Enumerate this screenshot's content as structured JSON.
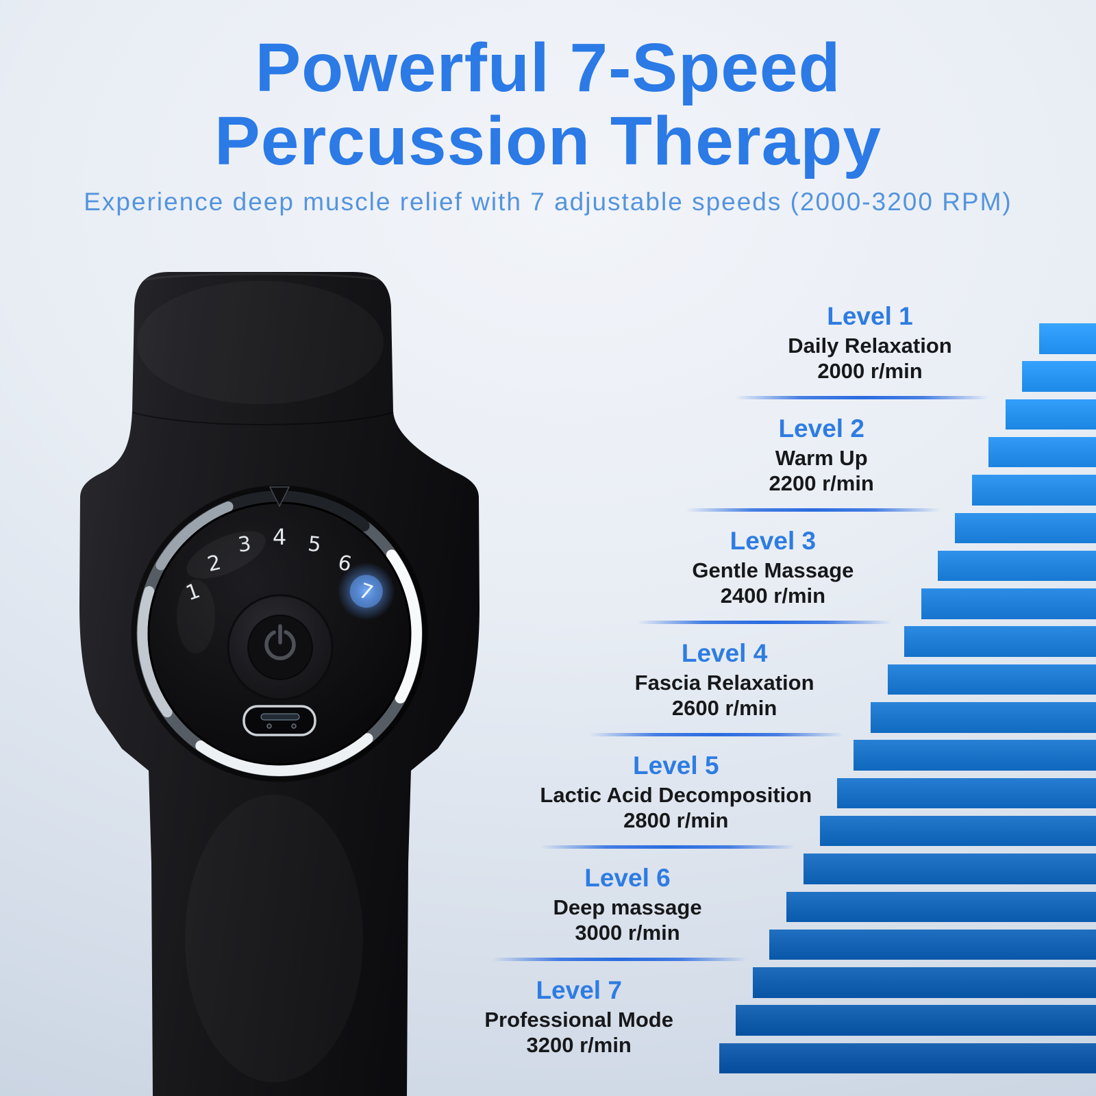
{
  "header": {
    "title_line1": "Powerful 7-Speed",
    "title_line2": "Percussion Therapy",
    "subtitle": "Experience deep muscle relief with 7 adjustable speeds (2000-3200 RPM)"
  },
  "levels": [
    {
      "title": "Level 1",
      "name": "Daily Relaxation",
      "rpm": "2000 r/min"
    },
    {
      "title": "Level 2",
      "name": "Warm Up",
      "rpm": "2200 r/min"
    },
    {
      "title": "Level 3",
      "name": "Gentle Massage",
      "rpm": "2400 r/min"
    },
    {
      "title": "Level 4",
      "name": "Fascia Relaxation",
      "rpm": "2600 r/min"
    },
    {
      "title": "Level 5",
      "name": "Lactic Acid Decomposition",
      "rpm": "2800 r/min"
    },
    {
      "title": "Level 6",
      "name": "Deep massage",
      "rpm": "3000 r/min"
    },
    {
      "title": "Level 7",
      "name": "Professional Mode",
      "rpm": "3200 r/min"
    }
  ],
  "device": {
    "dial_numbers": [
      "1",
      "2",
      "3",
      "4",
      "5",
      "6",
      "7"
    ],
    "active_number": "7"
  },
  "chart_data": {
    "type": "bar",
    "title": "7-speed percussion staircase",
    "categories": [
      "Level 1",
      "Level 2",
      "Level 3",
      "Level 4",
      "Level 5",
      "Level 6",
      "Level 7"
    ],
    "values": [
      2000,
      2200,
      2400,
      2600,
      2800,
      3000,
      3200
    ],
    "units": "r/min",
    "ylim": [
      2000,
      3200
    ],
    "orientation": "right-aligned descending staircase",
    "bar_count": 20,
    "bar_color_top": "#2997f5",
    "bar_color_bottom": "#0f57a6"
  },
  "colors": {
    "title_blue": "#2b7ae6",
    "subtitle_blue": "#5494dd",
    "level_title_blue": "#2e7ce2",
    "body_text": "#17181a",
    "divider_blue": "#2a6be0",
    "dial_glow": "#5aa0f0",
    "dial_number_white": "#e4e7eb"
  }
}
